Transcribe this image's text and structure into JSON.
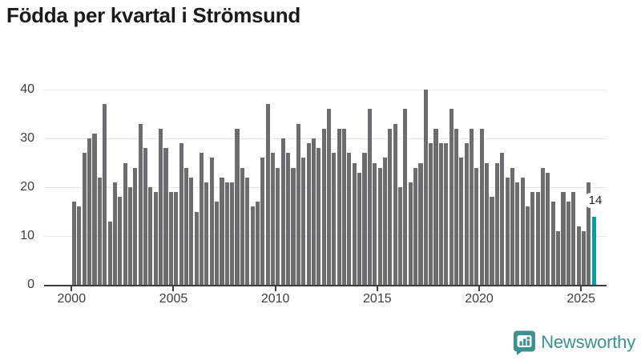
{
  "title": "Födda per kvartal i Strömsund",
  "logo": {
    "text": "Newsworthy"
  },
  "colors": {
    "title": "#1b1b1b",
    "bar": "#6c6c71",
    "highlight": "#00a2a6",
    "gridline": "#e8e8e8",
    "axis": "#3e3e42",
    "tick_label": "#3d3d3d",
    "annotation_text": "#222222",
    "annotation_bg": "#ffffff",
    "logo_teal": "#3b928f",
    "background": "#ffffff"
  },
  "chart_data": {
    "type": "bar",
    "title": "Födda per kvartal i Strömsund",
    "xlabel": "",
    "ylabel": "",
    "frequency": "quarterly",
    "start_period": "2000 Q1",
    "end_period": "2025 Q3",
    "categories": [
      "2000 Q1",
      "2000 Q2",
      "2000 Q3",
      "2000 Q4",
      "2001 Q1",
      "2001 Q2",
      "2001 Q3",
      "2001 Q4",
      "2002 Q1",
      "2002 Q2",
      "2002 Q3",
      "2002 Q4",
      "2003 Q1",
      "2003 Q2",
      "2003 Q3",
      "2003 Q4",
      "2004 Q1",
      "2004 Q2",
      "2004 Q3",
      "2004 Q4",
      "2005 Q1",
      "2005 Q2",
      "2005 Q3",
      "2005 Q4",
      "2006 Q1",
      "2006 Q2",
      "2006 Q3",
      "2006 Q4",
      "2007 Q1",
      "2007 Q2",
      "2007 Q3",
      "2007 Q4",
      "2008 Q1",
      "2008 Q2",
      "2008 Q3",
      "2008 Q4",
      "2009 Q1",
      "2009 Q2",
      "2009 Q3",
      "2009 Q4",
      "2010 Q1",
      "2010 Q2",
      "2010 Q3",
      "2010 Q4",
      "2011 Q1",
      "2011 Q2",
      "2011 Q3",
      "2011 Q4",
      "2012 Q1",
      "2012 Q2",
      "2012 Q3",
      "2012 Q4",
      "2013 Q1",
      "2013 Q2",
      "2013 Q3",
      "2013 Q4",
      "2014 Q1",
      "2014 Q2",
      "2014 Q3",
      "2014 Q4",
      "2015 Q1",
      "2015 Q2",
      "2015 Q3",
      "2015 Q4",
      "2016 Q1",
      "2016 Q2",
      "2016 Q3",
      "2016 Q4",
      "2017 Q1",
      "2017 Q2",
      "2017 Q3",
      "2017 Q4",
      "2018 Q1",
      "2018 Q2",
      "2018 Q3",
      "2018 Q4",
      "2019 Q1",
      "2019 Q2",
      "2019 Q3",
      "2019 Q4",
      "2020 Q1",
      "2020 Q2",
      "2020 Q3",
      "2020 Q4",
      "2021 Q1",
      "2021 Q2",
      "2021 Q3",
      "2021 Q4",
      "2022 Q1",
      "2022 Q2",
      "2022 Q3",
      "2022 Q4",
      "2023 Q1",
      "2023 Q2",
      "2023 Q3",
      "2023 Q4",
      "2024 Q1",
      "2024 Q2",
      "2024 Q3",
      "2024 Q4",
      "2025 Q1",
      "2025 Q2",
      "2025 Q3"
    ],
    "values": [
      17,
      16,
      27,
      30,
      31,
      22,
      37,
      13,
      21,
      18,
      25,
      20,
      24,
      33,
      28,
      20,
      19,
      32,
      28,
      19,
      19,
      29,
      24,
      22,
      15,
      27,
      21,
      26,
      17,
      22,
      21,
      21,
      32,
      24,
      22,
      16,
      17,
      26,
      37,
      27,
      24,
      30,
      27,
      24,
      33,
      26,
      29,
      30,
      28,
      32,
      36,
      27,
      32,
      32,
      27,
      25,
      23,
      27,
      36,
      25,
      24,
      26,
      32,
      33,
      20,
      36,
      21,
      24,
      25,
      40,
      29,
      32,
      29,
      29,
      36,
      32,
      26,
      29,
      32,
      24,
      32,
      25,
      18,
      25,
      27,
      22,
      24,
      21,
      22,
      16,
      19,
      19,
      24,
      23,
      17,
      11,
      19,
      17,
      19,
      12,
      11,
      21,
      14
    ],
    "highlight_index": 102,
    "annotation": {
      "index": 102,
      "text": "14"
    },
    "y_ticks": [
      0,
      10,
      20,
      30,
      40
    ],
    "ylim": [
      0,
      40
    ],
    "x_tick_labels": [
      "2000",
      "2005",
      "2010",
      "2015",
      "2020",
      "2025"
    ],
    "x_tick_quarter_positions": [
      0,
      20,
      40,
      60,
      80,
      100
    ],
    "grid": true,
    "legend": "none"
  }
}
